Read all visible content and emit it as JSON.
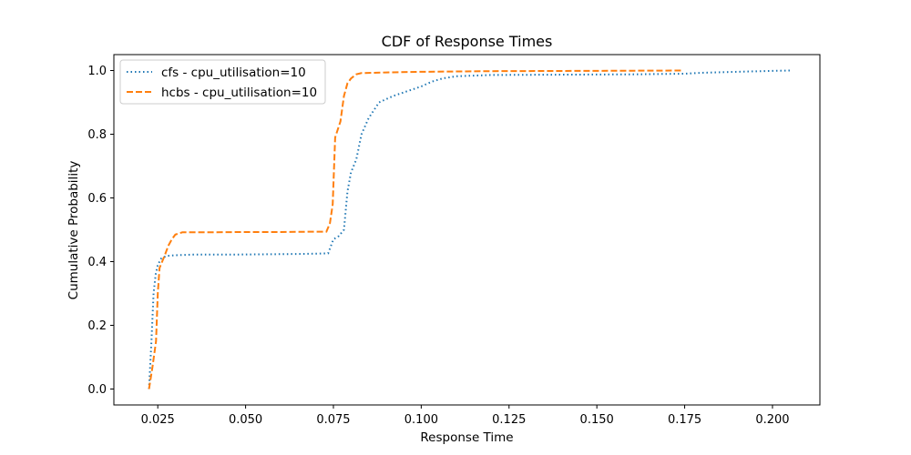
{
  "chart_data": {
    "type": "line",
    "title": "CDF of Response Times",
    "xlabel": "Response Time",
    "ylabel": "Cumulative Probability",
    "xlim": [
      0.0125,
      0.2135
    ],
    "ylim": [
      -0.05,
      1.05
    ],
    "xticks": [
      0.025,
      0.05,
      0.075,
      0.1,
      0.125,
      0.15,
      0.175,
      0.2
    ],
    "xtick_labels": [
      "0.025",
      "0.050",
      "0.075",
      "0.100",
      "0.125",
      "0.150",
      "0.175",
      "0.200"
    ],
    "yticks": [
      0.0,
      0.2,
      0.4,
      0.6,
      0.8,
      1.0
    ],
    "ytick_labels": [
      "0.0",
      "0.2",
      "0.4",
      "0.6",
      "0.8",
      "1.0"
    ],
    "grid": false,
    "legend_position": "top-left",
    "series": [
      {
        "name": "cfs - cpu_utilisation=10",
        "color": "#1f77b4",
        "style": "dotted",
        "x": [
          0.0225,
          0.0232,
          0.0238,
          0.0244,
          0.025,
          0.026,
          0.0275,
          0.03,
          0.035,
          0.045,
          0.055,
          0.065,
          0.07,
          0.0735,
          0.075,
          0.0765,
          0.078,
          0.079,
          0.08,
          0.0815,
          0.083,
          0.085,
          0.088,
          0.092,
          0.096,
          0.1,
          0.103,
          0.106,
          0.11,
          0.12,
          0.14,
          0.16,
          0.175,
          0.18,
          0.19,
          0.2,
          0.205
        ],
        "y": [
          0.0,
          0.15,
          0.3,
          0.36,
          0.39,
          0.41,
          0.418,
          0.42,
          0.422,
          0.422,
          0.423,
          0.424,
          0.425,
          0.426,
          0.47,
          0.48,
          0.5,
          0.62,
          0.68,
          0.72,
          0.8,
          0.85,
          0.9,
          0.92,
          0.935,
          0.95,
          0.965,
          0.975,
          0.982,
          0.986,
          0.987,
          0.988,
          0.99,
          0.993,
          0.996,
          0.999,
          1.0
        ]
      },
      {
        "name": "hcbs - cpu_utilisation=10",
        "color": "#ff7f0e",
        "style": "dashed",
        "x": [
          0.0225,
          0.0235,
          0.0245,
          0.025,
          0.0255,
          0.027,
          0.028,
          0.029,
          0.03,
          0.032,
          0.04,
          0.05,
          0.06,
          0.07,
          0.073,
          0.074,
          0.0748,
          0.0755,
          0.077,
          0.078,
          0.079,
          0.08,
          0.0815,
          0.083,
          0.09,
          0.1,
          0.12,
          0.15,
          0.174
        ],
        "y": [
          0.0,
          0.07,
          0.15,
          0.3,
          0.38,
          0.42,
          0.45,
          0.47,
          0.485,
          0.492,
          0.492,
          0.493,
          0.493,
          0.494,
          0.494,
          0.52,
          0.58,
          0.79,
          0.84,
          0.92,
          0.96,
          0.975,
          0.988,
          0.992,
          0.994,
          0.996,
          0.998,
          0.999,
          1.0
        ]
      }
    ]
  }
}
